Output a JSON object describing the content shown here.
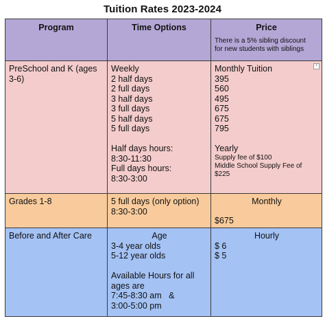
{
  "title": "Tuition Rates 2023-2024",
  "headers": {
    "program": "Program",
    "time_options": "Time Options",
    "price": "Price",
    "price_note_1": "There is a 5% sibling discount",
    "price_note_2": "for new students with siblings"
  },
  "preschool": {
    "program_1": "PreSchool and K (ages",
    "program_2": "3-6)",
    "weekly": "Weekly",
    "opt1": "2 half days",
    "opt2": "2 full days",
    "opt3": "3 half days",
    "opt4": "3 full days",
    "opt5": "5 half days",
    "opt6": "5 full days",
    "half_hours_label": "Half days hours:",
    "half_hours": "8:30-11:30",
    "full_hours_label": "Full days hours:",
    "full_hours": "8:30-3:00",
    "monthly_tuition": "Monthly Tuition",
    "price1": "395",
    "price2": "560",
    "price3": "495",
    "price4": "675",
    "price5": "675",
    "price6": "795",
    "yearly": "Yearly",
    "supply_fee": "Supply fee of $100",
    "ms_supply_1": "Middle School Supply Fee of",
    "ms_supply_2": "$225"
  },
  "grades": {
    "program": "Grades 1-8",
    "option": "5 full days (only option)",
    "hours": "8:30-3:00",
    "monthly": "Monthly",
    "price": "$675"
  },
  "care": {
    "program": "Before and After Care",
    "age": "Age",
    "age1": "3-4 year olds",
    "age2": "5-12 year olds",
    "avail_1": "Available Hours for all",
    "avail_2": "ages are",
    "avail_3": "7:45-8:30 am   &",
    "avail_4": "3:00-5:00 pm",
    "hourly": "Hourly",
    "rate1": "$ 6",
    "rate2": "$ 5"
  }
}
